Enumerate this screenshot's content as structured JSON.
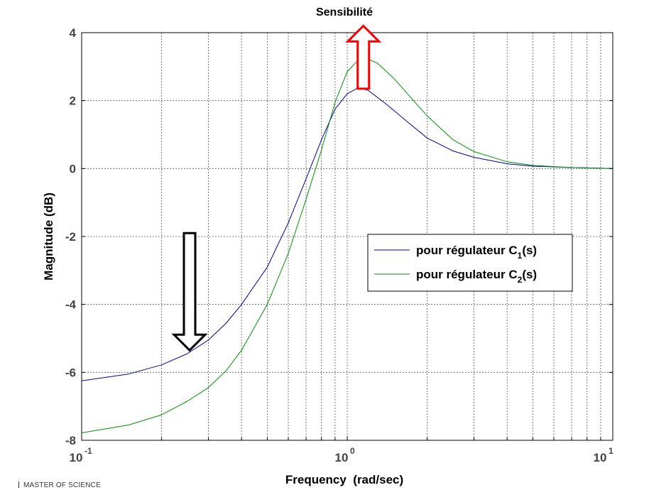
{
  "chart_data": {
    "type": "line",
    "title": "Sensibilité",
    "xlabel": "Frequency  (rad/sec)",
    "ylabel": "Magnitude (dB)",
    "xscale": "log",
    "xlim": [
      0.1,
      10
    ],
    "ylim": [
      -8,
      4
    ],
    "grid": true,
    "legend_position": "right",
    "x_ticks": [
      {
        "base": "10",
        "exp": "-1"
      },
      {
        "base": "10",
        "exp": "0"
      },
      {
        "base": "10",
        "exp": "1"
      }
    ],
    "y_ticks": [
      "4",
      "2",
      "0",
      "-2",
      "-4",
      "-6",
      "-8"
    ],
    "y_tick_values": [
      4,
      2,
      0,
      -2,
      -4,
      -6,
      -8
    ],
    "series": [
      {
        "name": "pour régulateur C1(s)",
        "label_main": "pour régulateur C",
        "label_sub": "1",
        "label_end": "(s)",
        "color": "#0000a0",
        "x": [
          0.1,
          0.15,
          0.2,
          0.25,
          0.3,
          0.35,
          0.4,
          0.5,
          0.6,
          0.7,
          0.8,
          0.9,
          1.0,
          1.1,
          1.2,
          1.4,
          1.7,
          2.0,
          2.5,
          3.0,
          4.0,
          5.0,
          7.0,
          10.0
        ],
        "y": [
          -6.25,
          -6.05,
          -5.78,
          -5.45,
          -5.05,
          -4.55,
          -4.0,
          -2.9,
          -1.6,
          -0.3,
          0.85,
          1.75,
          2.2,
          2.38,
          2.3,
          1.9,
          1.35,
          0.9,
          0.52,
          0.33,
          0.14,
          0.07,
          0.03,
          0.0
        ]
      },
      {
        "name": "pour régulateur C2(s)",
        "label_main": "pour régulateur C",
        "label_sub": "2",
        "label_end": "(s)",
        "color": "#009000",
        "x": [
          0.1,
          0.15,
          0.2,
          0.25,
          0.3,
          0.35,
          0.4,
          0.5,
          0.6,
          0.7,
          0.8,
          0.9,
          1.0,
          1.1,
          1.2,
          1.3,
          1.5,
          1.8,
          2.0,
          2.5,
          3.0,
          4.0,
          5.0,
          7.0,
          10.0
        ],
        "y": [
          -7.78,
          -7.55,
          -7.25,
          -6.85,
          -6.45,
          -5.95,
          -5.35,
          -4.0,
          -2.5,
          -0.9,
          0.55,
          1.95,
          2.85,
          3.2,
          3.22,
          3.1,
          2.65,
          1.95,
          1.55,
          0.85,
          0.5,
          0.2,
          0.09,
          0.03,
          0.0
        ]
      }
    ],
    "annotations": [
      {
        "kind": "arrow-up",
        "color": "#ff0000",
        "x": 1.15,
        "y_from": 2.35,
        "y_to": 4.2
      },
      {
        "kind": "arrow-down",
        "color": "#000000",
        "x": 0.255,
        "y_from": -1.9,
        "y_to": -5.35
      }
    ]
  },
  "footer": {
    "text": "MASTER OF SCIENCE"
  }
}
